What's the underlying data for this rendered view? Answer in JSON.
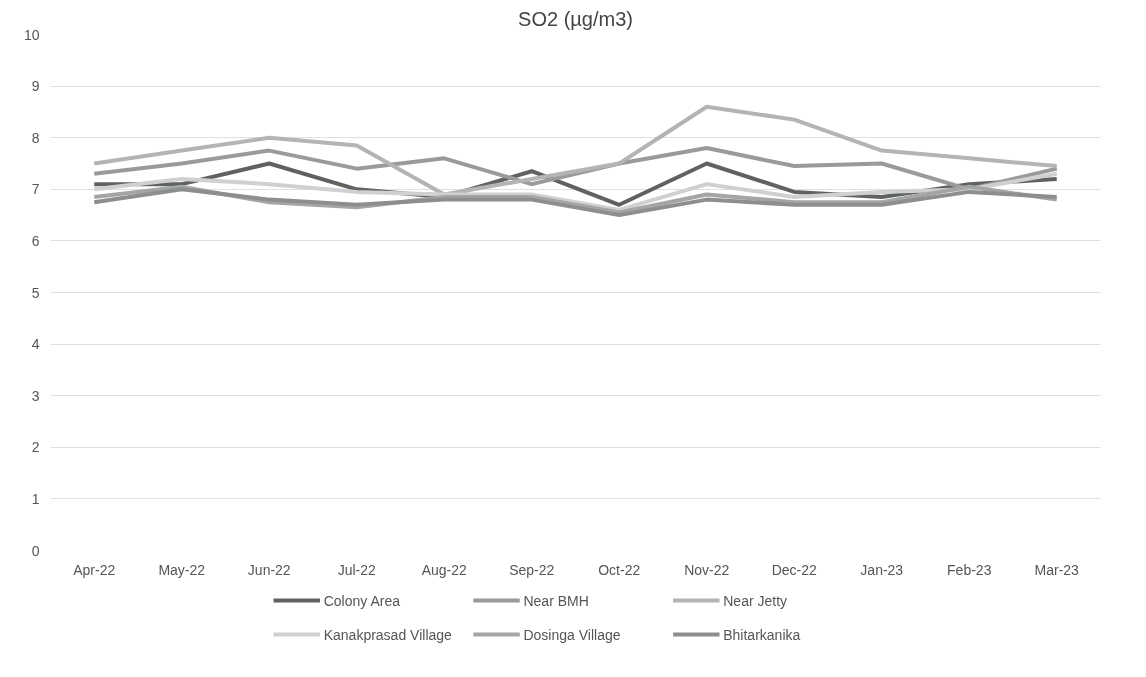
{
  "chart_data": {
    "type": "line",
    "title": "SO2 (µg/m3)",
    "categories": [
      "Apr-22",
      "May-22",
      "Jun-22",
      "Jul-22",
      "Aug-22",
      "Sep-22",
      "Oct-22",
      "Nov-22",
      "Dec-22",
      "Jan-23",
      "Feb-23",
      "Mar-23"
    ],
    "series": [
      {
        "name": "Colony Area",
        "color": "#5f6360",
        "values": [
          7.1,
          7.1,
          7.5,
          7.0,
          6.85,
          7.35,
          6.7,
          7.5,
          6.95,
          6.85,
          7.1,
          7.2
        ]
      },
      {
        "name": "Near BMH",
        "color": "#9a9a9a",
        "values": [
          7.3,
          7.5,
          7.75,
          7.4,
          7.6,
          7.1,
          7.5,
          7.8,
          7.45,
          7.5,
          7.0,
          7.4
        ]
      },
      {
        "name": "Near Jetty",
        "color": "#b4b4b4",
        "values": [
          7.5,
          7.75,
          8.0,
          7.85,
          6.9,
          7.2,
          7.5,
          8.6,
          8.35,
          7.75,
          7.6,
          7.45
        ]
      },
      {
        "name": "Kanakprasad Village",
        "color": "#cfcfd4",
        "values": [
          7.0,
          7.2,
          7.1,
          6.95,
          6.9,
          6.9,
          6.6,
          7.1,
          6.85,
          6.95,
          7.0,
          7.3
        ]
      },
      {
        "name": "Dosinga Village",
        "color": "#a3a6a4",
        "values": [
          6.85,
          7.05,
          6.75,
          6.65,
          6.85,
          6.85,
          6.55,
          6.9,
          6.75,
          6.75,
          7.05,
          6.8
        ]
      },
      {
        "name": "Bhitarkanika",
        "color": "#8c8f8d",
        "values": [
          6.75,
          7.0,
          6.8,
          6.7,
          6.8,
          6.8,
          6.5,
          6.8,
          6.7,
          6.7,
          6.95,
          6.85
        ]
      }
    ],
    "ylim": [
      0,
      10
    ],
    "yticks": [
      0,
      1,
      2,
      3,
      4,
      5,
      6,
      7,
      8,
      9,
      10
    ],
    "grid": "y",
    "legend": "bottom",
    "marker": "none",
    "line_style": "solid"
  }
}
